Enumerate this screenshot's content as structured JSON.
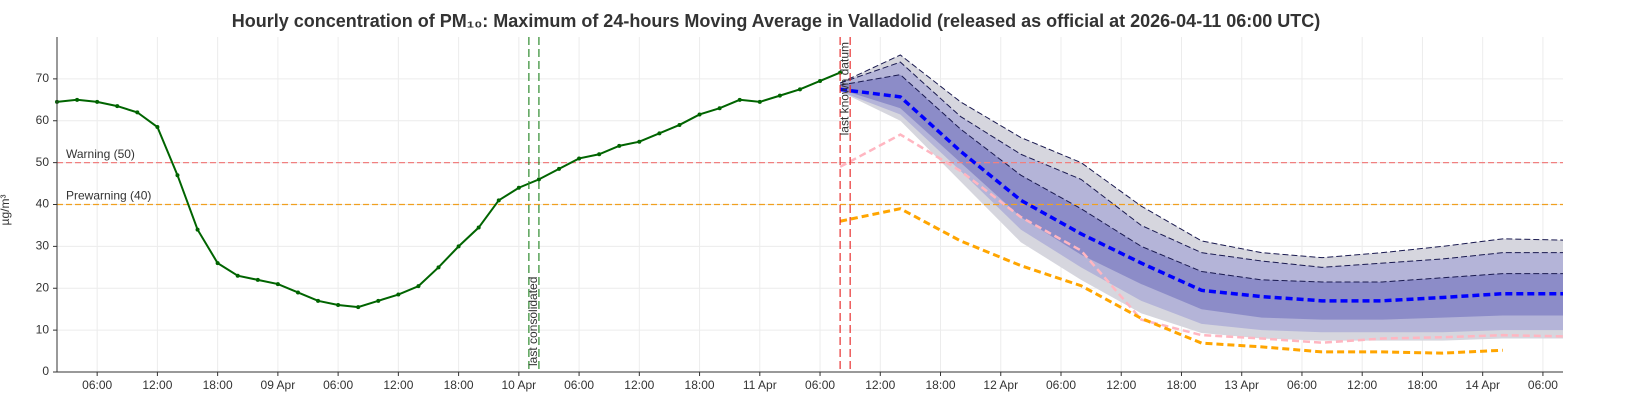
{
  "chart_data": {
    "type": "line",
    "title": "Hourly concentration of PM₁₀: Maximum of 24-hours Moving Average in Valladolid (released as official at 2026-04-11 06:00 UTC)",
    "y_label": "µg/m³",
    "xlim": [
      "04-08T02:00",
      "04-14T08:00"
    ],
    "ylim": [
      0,
      80
    ],
    "yticks": [
      0,
      10,
      20,
      30,
      40,
      50,
      60,
      70
    ],
    "grid": true,
    "xticks": [
      {
        "value": "04-08T06:00",
        "label": "06:00"
      },
      {
        "value": "04-08T12:00",
        "label": "12:00"
      },
      {
        "value": "04-08T18:00",
        "label": "18:00"
      },
      {
        "value": "04-09T00:00",
        "label": "09 Apr"
      },
      {
        "value": "04-09T06:00",
        "label": "06:00"
      },
      {
        "value": "04-09T12:00",
        "label": "12:00"
      },
      {
        "value": "04-09T18:00",
        "label": "18:00"
      },
      {
        "value": "04-10T00:00",
        "label": "10 Apr"
      },
      {
        "value": "04-10T06:00",
        "label": "06:00"
      },
      {
        "value": "04-10T12:00",
        "label": "12:00"
      },
      {
        "value": "04-10T18:00",
        "label": "18:00"
      },
      {
        "value": "04-11T00:00",
        "label": "11 Apr"
      },
      {
        "value": "04-11T06:00",
        "label": "06:00"
      },
      {
        "value": "04-11T12:00",
        "label": "12:00"
      },
      {
        "value": "04-11T18:00",
        "label": "18:00"
      },
      {
        "value": "04-12T00:00",
        "label": "12 Apr"
      },
      {
        "value": "04-12T06:00",
        "label": "06:00"
      },
      {
        "value": "04-12T12:00",
        "label": "12:00"
      },
      {
        "value": "04-12T18:00",
        "label": "18:00"
      },
      {
        "value": "04-13T00:00",
        "label": "13 Apr"
      },
      {
        "value": "04-13T06:00",
        "label": "06:00"
      },
      {
        "value": "04-13T12:00",
        "label": "12:00"
      },
      {
        "value": "04-13T18:00",
        "label": "18:00"
      },
      {
        "value": "04-14T00:00",
        "label": "14 Apr"
      },
      {
        "value": "04-14T06:00",
        "label": "06:00"
      }
    ],
    "thresholds": [
      {
        "label": "Warning (50)",
        "value": 50,
        "color": "#f08080"
      },
      {
        "label": "Prewarning (40)",
        "value": 40,
        "color": "#f0a020"
      }
    ],
    "vlines": [
      {
        "label": "last consolidated",
        "x": [
          "04-10T01:00",
          "04-10T02:00"
        ],
        "color": "#2e8b2e"
      },
      {
        "label": "last known datum",
        "x": [
          "04-11T08:00",
          "04-11T09:00"
        ],
        "color": "#e83030"
      }
    ],
    "observed": {
      "color": "#006400",
      "x": [
        "04-08T02:00",
        "04-08T04:00",
        "04-08T06:00",
        "04-08T08:00",
        "04-08T10:00",
        "04-08T12:00",
        "04-08T14:00",
        "04-08T16:00",
        "04-08T18:00",
        "04-08T20:00",
        "04-08T22:00",
        "04-09T00:00",
        "04-09T02:00",
        "04-09T04:00",
        "04-09T06:00",
        "04-09T08:00",
        "04-09T10:00",
        "04-09T12:00",
        "04-09T14:00",
        "04-09T16:00",
        "04-09T18:00",
        "04-09T20:00",
        "04-09T22:00",
        "04-10T00:00",
        "04-10T02:00",
        "04-10T04:00",
        "04-10T06:00",
        "04-10T08:00",
        "04-10T10:00",
        "04-10T12:00",
        "04-10T14:00",
        "04-10T16:00",
        "04-10T18:00",
        "04-10T20:00",
        "04-10T22:00",
        "04-11T00:00",
        "04-11T02:00",
        "04-11T04:00",
        "04-11T06:00",
        "04-11T08:00"
      ],
      "values": [
        64.5,
        65,
        64.5,
        63.5,
        62,
        58.5,
        47,
        34,
        26,
        23,
        22,
        21,
        19,
        17,
        16,
        15.5,
        17,
        18.5,
        20.5,
        25,
        30,
        34.5,
        41,
        44,
        46,
        48.5,
        51,
        52,
        54,
        55,
        57,
        59,
        61.5,
        63,
        65,
        64.5,
        66,
        67.5,
        69.5,
        71.5
      ]
    },
    "forecast": {
      "x": [
        "04-11T08:00",
        "04-11T14:00",
        "04-11T20:00",
        "04-12T02:00",
        "04-12T08:00",
        "04-12T14:00",
        "04-12T20:00",
        "04-13T02:00",
        "04-13T08:00",
        "04-13T14:00",
        "04-13T20:00",
        "04-14T02:00",
        "04-14T08:00"
      ],
      "bands": [
        {
          "color": "#d6d6de",
          "upper": [
            69,
            75.7,
            64.5,
            56,
            50,
            39.6,
            31.3,
            28.5,
            27.3,
            28.5,
            30,
            31.8,
            31.5
          ],
          "lower": [
            67,
            60,
            45.5,
            31,
            22,
            14,
            9.3,
            8,
            7.5,
            7.5,
            7.5,
            8,
            8
          ]
        },
        {
          "color": "#b4b4d8",
          "upper": [
            69,
            74,
            61,
            52,
            46,
            35,
            28.5,
            26.5,
            25,
            26,
            27,
            28.5,
            28.5
          ],
          "lower": [
            67,
            61.5,
            48,
            34,
            25,
            17,
            11.5,
            10,
            9.5,
            9.5,
            9.5,
            10,
            10
          ]
        },
        {
          "color": "#8c8cc8",
          "upper": [
            68.5,
            71,
            58,
            47,
            39,
            30,
            24,
            22,
            21.5,
            21.5,
            22.5,
            23.5,
            23.5
          ],
          "lower": [
            67.5,
            63,
            50,
            37,
            28,
            21,
            15,
            13,
            12.5,
            12.5,
            13,
            13.5,
            13.5
          ]
        }
      ],
      "band_edge_color": "#1a1a50",
      "series": [
        {
          "color": "#ffb6c1",
          "width": 2.5,
          "values": [
            49,
            56.7,
            48,
            37,
            29,
            12.5,
            8.8,
            8,
            7,
            8,
            8.3,
            8.8,
            8.5
          ]
        },
        {
          "color": "#ffa500",
          "width": 3,
          "values": [
            36,
            39,
            31.3,
            25.4,
            20.6,
            12.8,
            6.9,
            6,
            4.8,
            4.8,
            4.5,
            5.2,
            null
          ]
        },
        {
          "color": "#0000ff",
          "width": 3.5,
          "values": [
            67.5,
            65.7,
            52.7,
            41,
            33,
            26,
            19.5,
            18,
            17,
            17,
            17.8,
            18.7,
            18.7
          ]
        }
      ]
    }
  }
}
